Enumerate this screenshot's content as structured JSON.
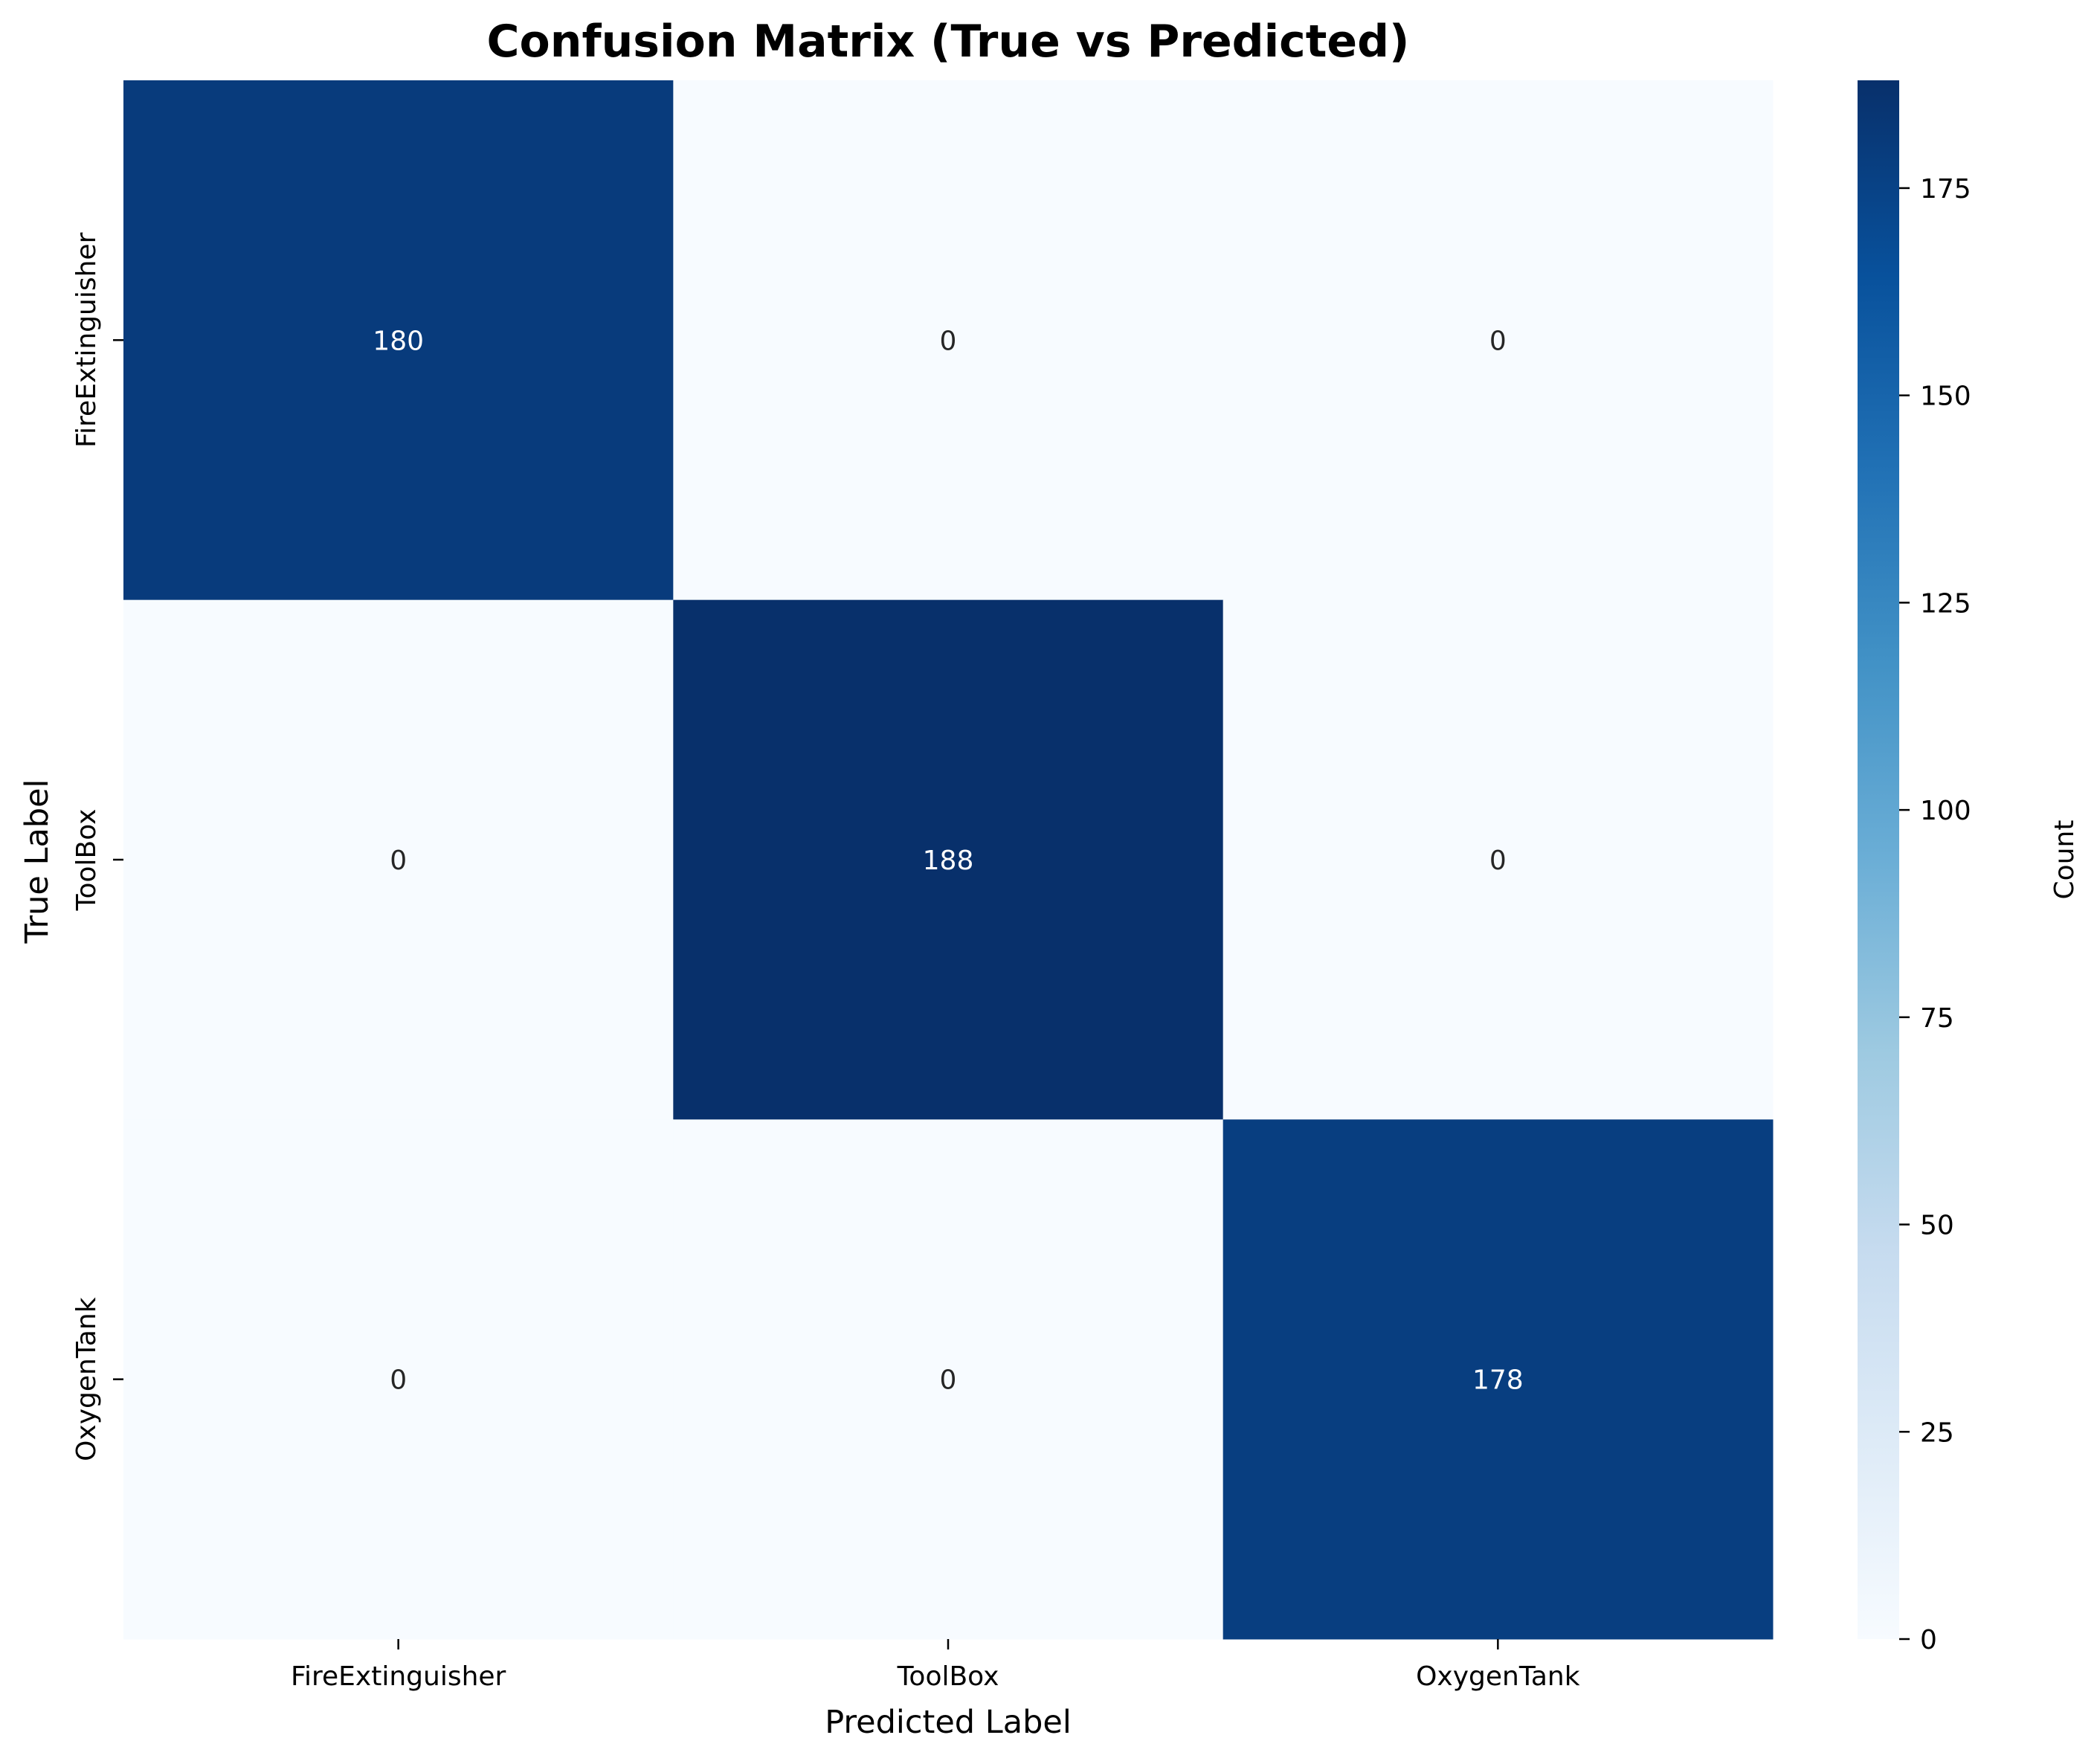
{
  "chart_data": {
    "type": "heatmap",
    "title": "Confusion Matrix (True vs Predicted)",
    "xlabel": "Predicted Label",
    "ylabel": "True Label",
    "x_categories": [
      "FireExtinguisher",
      "ToolBox",
      "OxygenTank"
    ],
    "y_categories": [
      "FireExtinguisher",
      "ToolBox",
      "OxygenTank"
    ],
    "matrix": [
      [
        180,
        0,
        0
      ],
      [
        0,
        188,
        0
      ],
      [
        0,
        0,
        178
      ]
    ],
    "colorbar": {
      "label": "Count",
      "range": [
        0,
        188
      ],
      "ticks": [
        0,
        25,
        50,
        75,
        100,
        125,
        150,
        175
      ],
      "colormap": "Blues"
    },
    "colors": {
      "low": "#f7fbff",
      "high": "#08306b"
    }
  }
}
